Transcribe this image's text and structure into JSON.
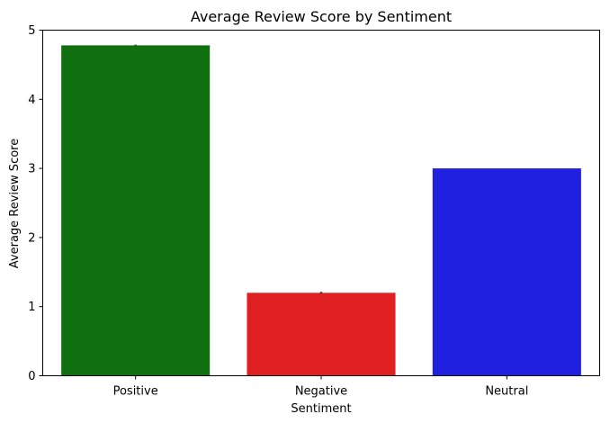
{
  "chart_data": {
    "type": "bar",
    "title": "Average Review Score by Sentiment",
    "xlabel": "Sentiment",
    "ylabel": "Average Review Score",
    "categories": [
      "Positive",
      "Negative",
      "Neutral"
    ],
    "values": [
      4.78,
      1.2,
      3.0
    ],
    "error": [
      0.01,
      0.015,
      0.0
    ],
    "colors": [
      "#107010",
      "#e02020",
      "#2020e0"
    ],
    "ylim": [
      0,
      5
    ],
    "yticks": [
      "0",
      "1",
      "2",
      "3",
      "4",
      "5"
    ],
    "grid": false,
    "legend": "none"
  }
}
